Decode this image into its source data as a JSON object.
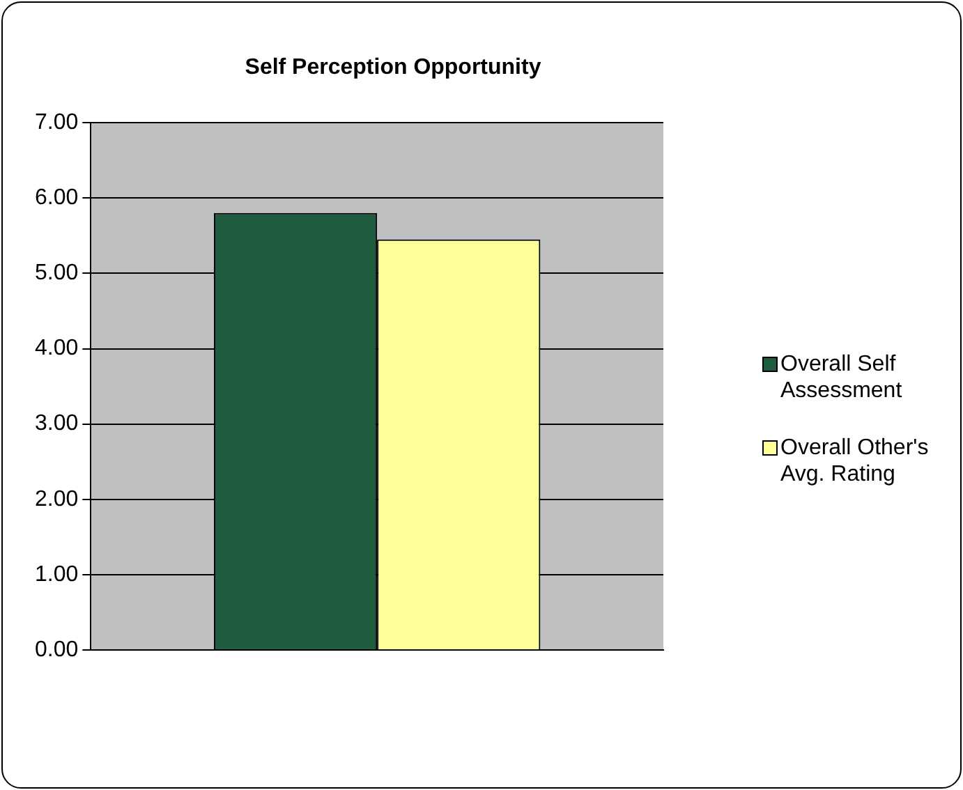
{
  "chart_data": {
    "type": "bar",
    "title": "Self Perception Opportunity",
    "categories": [
      null
    ],
    "series": [
      {
        "name": "Overall Self Assessment",
        "color": "#1f5c3f",
        "values": [
          5.8
        ]
      },
      {
        "name": "Overall Other's Avg. Rating",
        "color": "#ffff99",
        "values": [
          5.45
        ]
      }
    ],
    "ylim": [
      0,
      7
    ],
    "yticks": [
      {
        "value": 0,
        "label": "0.00"
      },
      {
        "value": 1,
        "label": "1.00"
      },
      {
        "value": 2,
        "label": "2.00"
      },
      {
        "value": 3,
        "label": "3.00"
      },
      {
        "value": 4,
        "label": "4.00"
      },
      {
        "value": 5,
        "label": "5.00"
      },
      {
        "value": 6,
        "label": "6.00"
      },
      {
        "value": 7,
        "label": "7.00"
      }
    ],
    "grid": "y",
    "legend": "right"
  }
}
